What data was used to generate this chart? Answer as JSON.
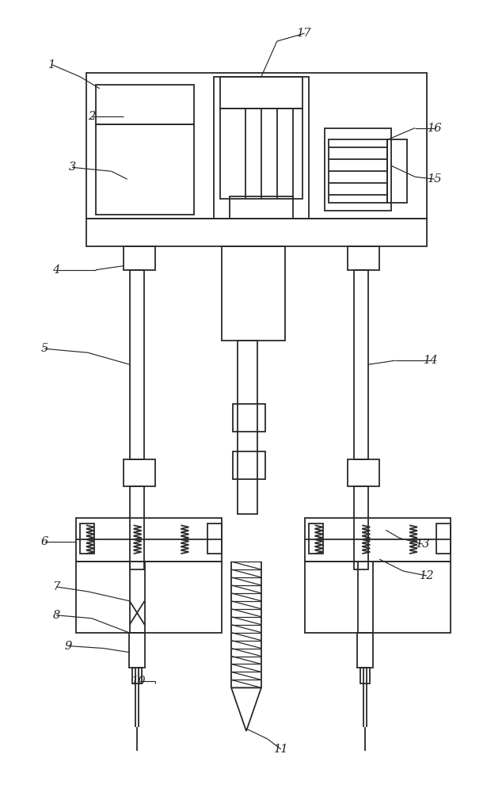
{
  "bg_color": "#ffffff",
  "line_color": "#2a2a2a",
  "lw": 1.3,
  "label_color": "#222222",
  "label_fontsize": 10.5,
  "fig_width": 6.15,
  "fig_height": 10.0
}
